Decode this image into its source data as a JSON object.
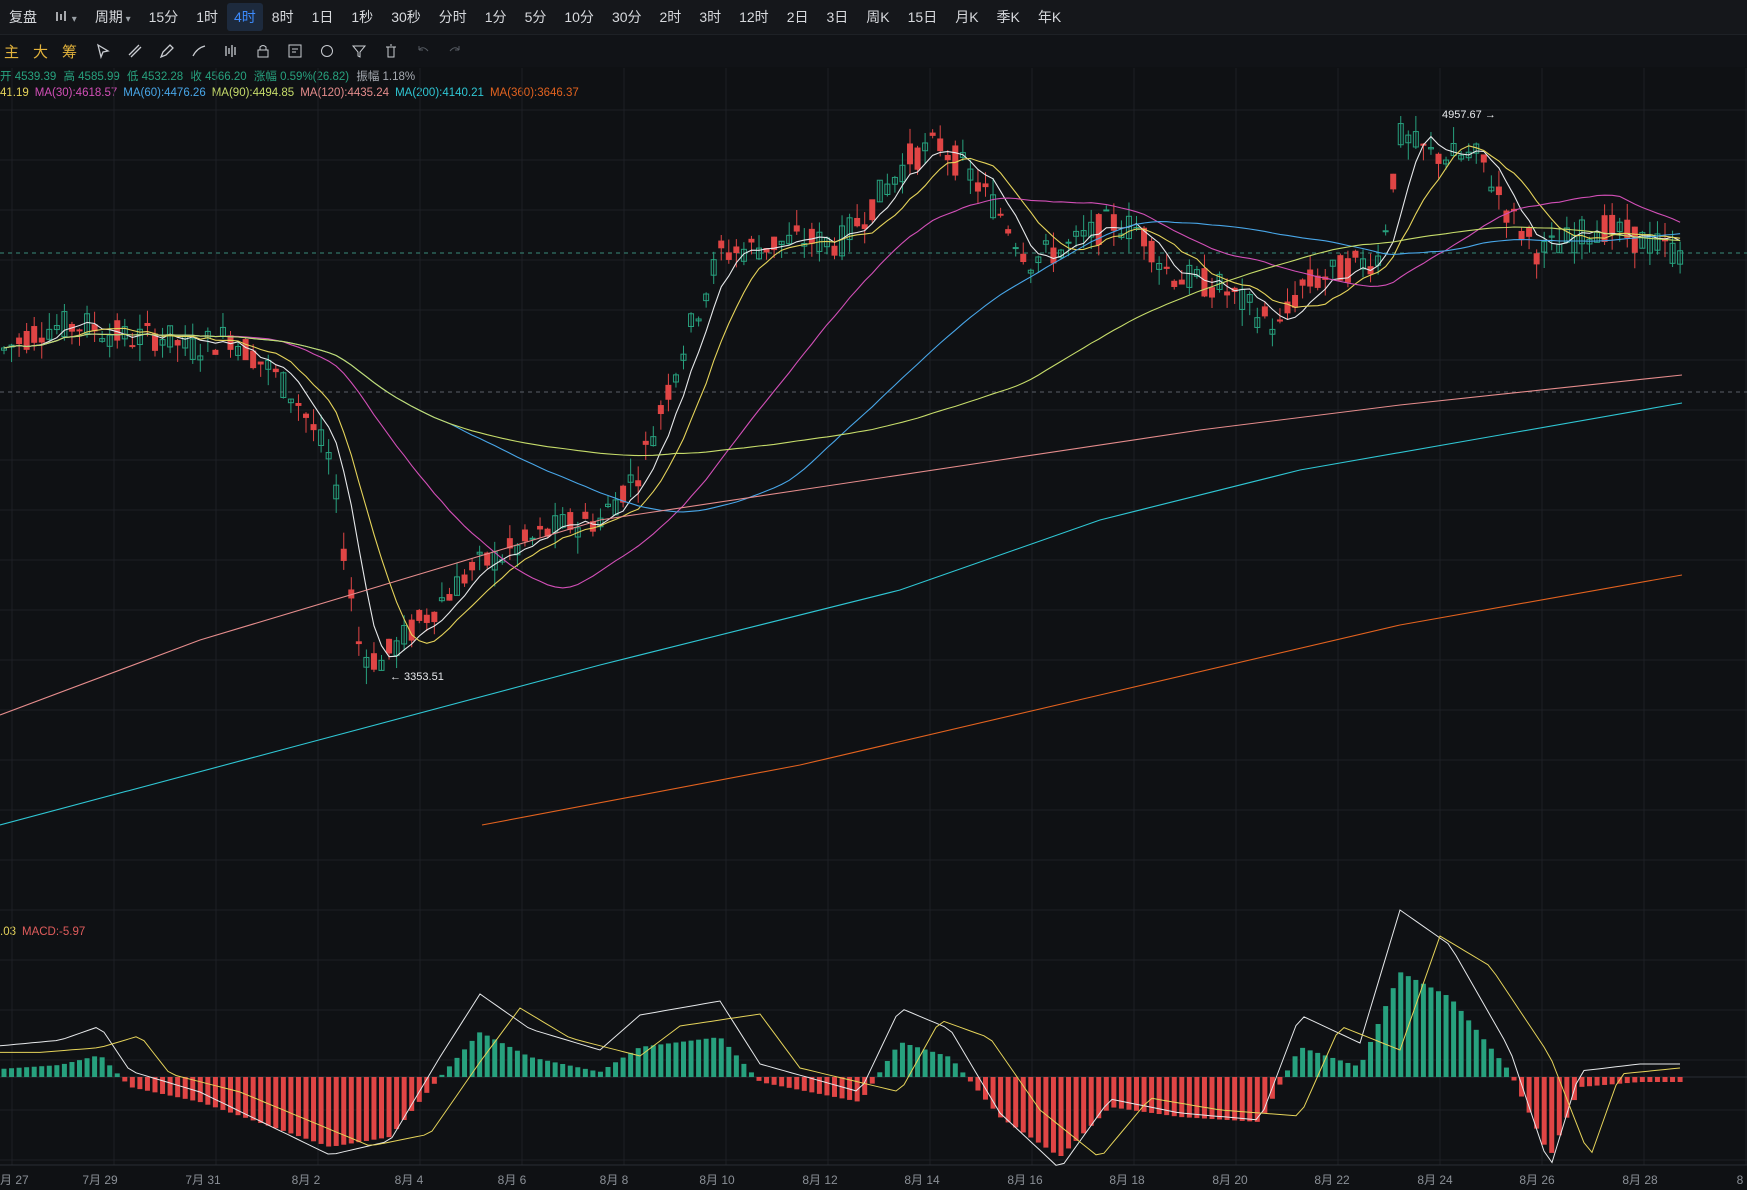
{
  "toolbar": {
    "items": [
      "复盘",
      "周期",
      "15分",
      "1时",
      "4时",
      "8时",
      "1日",
      "1秒",
      "30秒",
      "分时",
      "1分",
      "5分",
      "10分",
      "30分",
      "2时",
      "3时",
      "12时",
      "2日",
      "3日",
      "周K",
      "15日",
      "月K",
      "季K",
      "年K"
    ],
    "active": "4时"
  },
  "drawbar": {
    "labels": [
      "主",
      "大",
      "筹"
    ],
    "icons": [
      "cursor-icon",
      "ruler-icon",
      "pen-icon",
      "brush-icon",
      "indicator-icon",
      "note-icon",
      "magnet-icon",
      "filter-icon",
      "trash-icon",
      "undo-icon",
      "redo-icon"
    ]
  },
  "ohlc": {
    "open": "开 4539.39",
    "high": "高 4585.99",
    "low": "低 4532.28",
    "close": "收 4566.20",
    "change": "涨幅 0.59%(26.82)",
    "amplitude": "振幅 1.18%"
  },
  "ma_legend": [
    {
      "text": "41.19",
      "color": "#e5d35a"
    },
    {
      "text": "MA(30):4618.57",
      "color": "#d24fb7"
    },
    {
      "text": "MA(60):4476.26",
      "color": "#48a6e8"
    },
    {
      "text": "MA(90):4494.85",
      "color": "#c6dc6a"
    },
    {
      "text": "MA(120):4435.24",
      "color": "#e58c8c"
    },
    {
      "text": "MA(200):4140.21",
      "color": "#2fc6d3"
    },
    {
      "text": "MA(360):3646.37",
      "color": "#e2621f"
    }
  ],
  "macd_legend": [
    {
      "text": ".03",
      "color": "#e5d35a"
    },
    {
      "text": "MACD:-5.97",
      "color": "#e05c5c"
    }
  ],
  "annotations": {
    "high_label": "4957.67",
    "low_label": "3353.51"
  },
  "x_axis": [
    "月 27",
    "7月 29",
    "7月 31",
    "8月 2",
    "8月 4",
    "8月 6",
    "8月 8",
    "8月 10",
    "8月 12",
    "8月 14",
    "8月 16",
    "8月 18",
    "8月 20",
    "8月 22",
    "8月 24",
    "8月 26",
    "8月 28",
    "8"
  ],
  "colors": {
    "up": "#27a17e",
    "down": "#e04545",
    "background": "#0f1114",
    "accent": "#3d8bfd"
  },
  "chart_data": {
    "type": "candlestick",
    "price_range": [
      3300,
      5000
    ],
    "highlighted_high": 4957.67,
    "highlighted_low": 3353.51,
    "ma_periods": [
      30,
      60,
      90,
      120,
      200,
      360
    ],
    "macd": -5.97
  }
}
